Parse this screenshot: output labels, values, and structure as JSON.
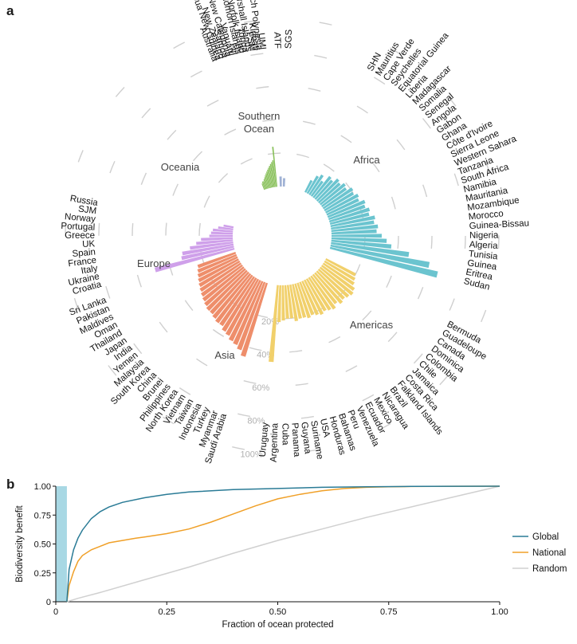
{
  "panel_a_label": "a",
  "panel_b_label": "b",
  "chart_data": [
    {
      "type": "radial-bar",
      "scale_labels": [
        "20%",
        "40%",
        "60%",
        "80%",
        "100%"
      ],
      "scale_values": [
        0.2,
        0.4,
        0.6,
        0.8,
        1.0
      ],
      "regions": [
        {
          "name": "Africa",
          "color": "#6bc4cf",
          "countries": [
            "SHN",
            "Mauritius",
            "Cape Verde",
            "Seychelles",
            "Equatorial Guinea",
            "Liberia",
            "Madagascar",
            "Somalia",
            "Senegal",
            "Angola",
            "Gabon",
            "Ghana",
            "Côte d'Ivoire",
            "Sierra Leone",
            "Western Sahara",
            "Tanzania",
            "South Africa",
            "Namibia",
            "Mauritania",
            "Mozambique",
            "Morocco",
            "Guinea-Bissau",
            "Nigeria",
            "Algeria",
            "Tunisia",
            "Guinea",
            "Eritrea",
            "Sudan"
          ],
          "values": [
            0.08,
            0.12,
            0.14,
            0.11,
            0.16,
            0.15,
            0.18,
            0.17,
            0.19,
            0.18,
            0.21,
            0.2,
            0.22,
            0.21,
            0.24,
            0.23,
            0.25,
            0.24,
            0.27,
            0.26,
            0.28,
            0.27,
            0.3,
            0.33,
            0.36,
            0.47,
            0.6,
            0.66
          ]
        },
        {
          "name": "Americas",
          "color": "#f1d06b",
          "countries": [
            "Bermuda",
            "Guadeloupe",
            "Canada",
            "Dominica",
            "Colombia",
            "Chile",
            "Jamaica",
            "Costa Rica",
            "Falkland Islands",
            "Brazil",
            "Nicaragua",
            "Mexico",
            "Ecuador",
            "Venezuela",
            "Peru",
            "Bahamas",
            "Honduras",
            "USA",
            "Suriname",
            "Guyana",
            "Panama",
            "Cuba",
            "Argentina",
            "Uruguay"
          ],
          "values": [
            0.2,
            0.21,
            0.22,
            0.24,
            0.25,
            0.24,
            0.23,
            0.24,
            0.22,
            0.24,
            0.23,
            0.22,
            0.23,
            0.22,
            0.21,
            0.22,
            0.21,
            0.21,
            0.22,
            0.2,
            0.2,
            0.21,
            0.22,
            0.46
          ]
        },
        {
          "name": "Asia",
          "color": "#ee8e6b",
          "countries": [
            "Saudi Arabia",
            "Myanmar",
            "Turkey",
            "Indonesia",
            "Taiwan",
            "Vietnam",
            "North Korea",
            "Philippines",
            "Brunei",
            "China",
            "South Korea",
            "Malaysia",
            "Yemen",
            "India",
            "Japan",
            "Thailand",
            "Oman",
            "Maldives",
            "Pakistan",
            "Sri Lanka"
          ],
          "values": [
            0.46,
            0.43,
            0.41,
            0.4,
            0.38,
            0.37,
            0.35,
            0.35,
            0.34,
            0.33,
            0.33,
            0.32,
            0.31,
            0.3,
            0.29,
            0.28,
            0.27,
            0.26,
            0.25,
            0.24
          ]
        },
        {
          "name": "Europe",
          "color": "#cfa0ea",
          "countries": [
            "Croatia",
            "Ukraine",
            "Italy",
            "France",
            "Spain",
            "UK",
            "Greece",
            "Portugal",
            "Norway",
            "SJM",
            "Russia"
          ],
          "values": [
            0.49,
            0.32,
            0.31,
            0.26,
            0.22,
            0.19,
            0.14,
            0.13,
            0.12,
            0.09,
            0.06
          ]
        },
        {
          "name": "Oceania",
          "color": "#88c05a",
          "countries": [
            "Australia",
            "Papua New Guinea",
            "New Zealand",
            "Samoa",
            "New Caledonia",
            "Vanuatu",
            "Fiji",
            "Solomon Islands",
            "Norfolk Island",
            "Tonga",
            "Marshall Islands",
            "FSM",
            "Kiribati",
            "French Polynesia",
            "UMI"
          ],
          "values": [
            0.04,
            0.05,
            0.05,
            0.06,
            0.07,
            0.08,
            0.09,
            0.1,
            0.11,
            0.12,
            0.13,
            0.14,
            0.15,
            0.16,
            0.24
          ]
        },
        {
          "name": "Southern Ocean",
          "name_lines": [
            "Southern",
            "Ocean"
          ],
          "color": "#9fb1d4",
          "countries": [
            "ATF",
            "SGS"
          ],
          "values": [
            0.06,
            0.05
          ]
        }
      ]
    },
    {
      "type": "line",
      "xlabel": "Fraction of ocean protected",
      "ylabel": "Biodiversity benefit",
      "xlim": [
        0,
        1
      ],
      "ylim": [
        0,
        1
      ],
      "x_tick_labels": [
        "0",
        "0.25",
        "0.50",
        "0.75",
        "1.00"
      ],
      "x_ticks": [
        0,
        0.25,
        0.5,
        0.75,
        1.0
      ],
      "y_tick_labels": [
        "0",
        "0.25",
        "0.50",
        "0.75",
        "1.00"
      ],
      "y_ticks": [
        0,
        0.25,
        0.5,
        0.75,
        1.0
      ],
      "shaded_band": {
        "x_from": 0,
        "x_to": 0.025,
        "color": "#a8d8e4"
      },
      "series": [
        {
          "name": "Global",
          "color": "#2a7b96",
          "x": [
            0.025,
            0.03,
            0.04,
            0.05,
            0.06,
            0.08,
            0.1,
            0.12,
            0.15,
            0.2,
            0.25,
            0.3,
            0.4,
            0.5,
            0.6,
            0.7,
            0.8,
            0.9,
            1.0
          ],
          "y": [
            0.0,
            0.28,
            0.45,
            0.55,
            0.62,
            0.72,
            0.78,
            0.82,
            0.86,
            0.9,
            0.93,
            0.95,
            0.97,
            0.98,
            0.99,
            0.995,
            0.998,
            0.999,
            1.0
          ]
        },
        {
          "name": "National",
          "color": "#f0a028",
          "x": [
            0.025,
            0.03,
            0.04,
            0.05,
            0.06,
            0.08,
            0.1,
            0.12,
            0.15,
            0.18,
            0.2,
            0.25,
            0.3,
            0.35,
            0.4,
            0.45,
            0.5,
            0.55,
            0.6,
            0.65,
            0.7,
            0.75,
            0.8,
            0.9,
            1.0
          ],
          "y": [
            0.0,
            0.14,
            0.26,
            0.35,
            0.4,
            0.45,
            0.48,
            0.51,
            0.53,
            0.55,
            0.56,
            0.59,
            0.63,
            0.69,
            0.76,
            0.83,
            0.89,
            0.93,
            0.96,
            0.98,
            0.99,
            0.995,
            0.997,
            0.999,
            1.0
          ]
        },
        {
          "name": "Random",
          "color": "#d0d0d0",
          "x": [
            0.025,
            0.05,
            0.1,
            0.2,
            0.3,
            0.4,
            0.5,
            0.6,
            0.7,
            0.8,
            0.9,
            1.0
          ],
          "y": [
            0.0,
            0.03,
            0.08,
            0.19,
            0.3,
            0.42,
            0.53,
            0.63,
            0.73,
            0.82,
            0.91,
            1.0
          ]
        }
      ]
    }
  ]
}
